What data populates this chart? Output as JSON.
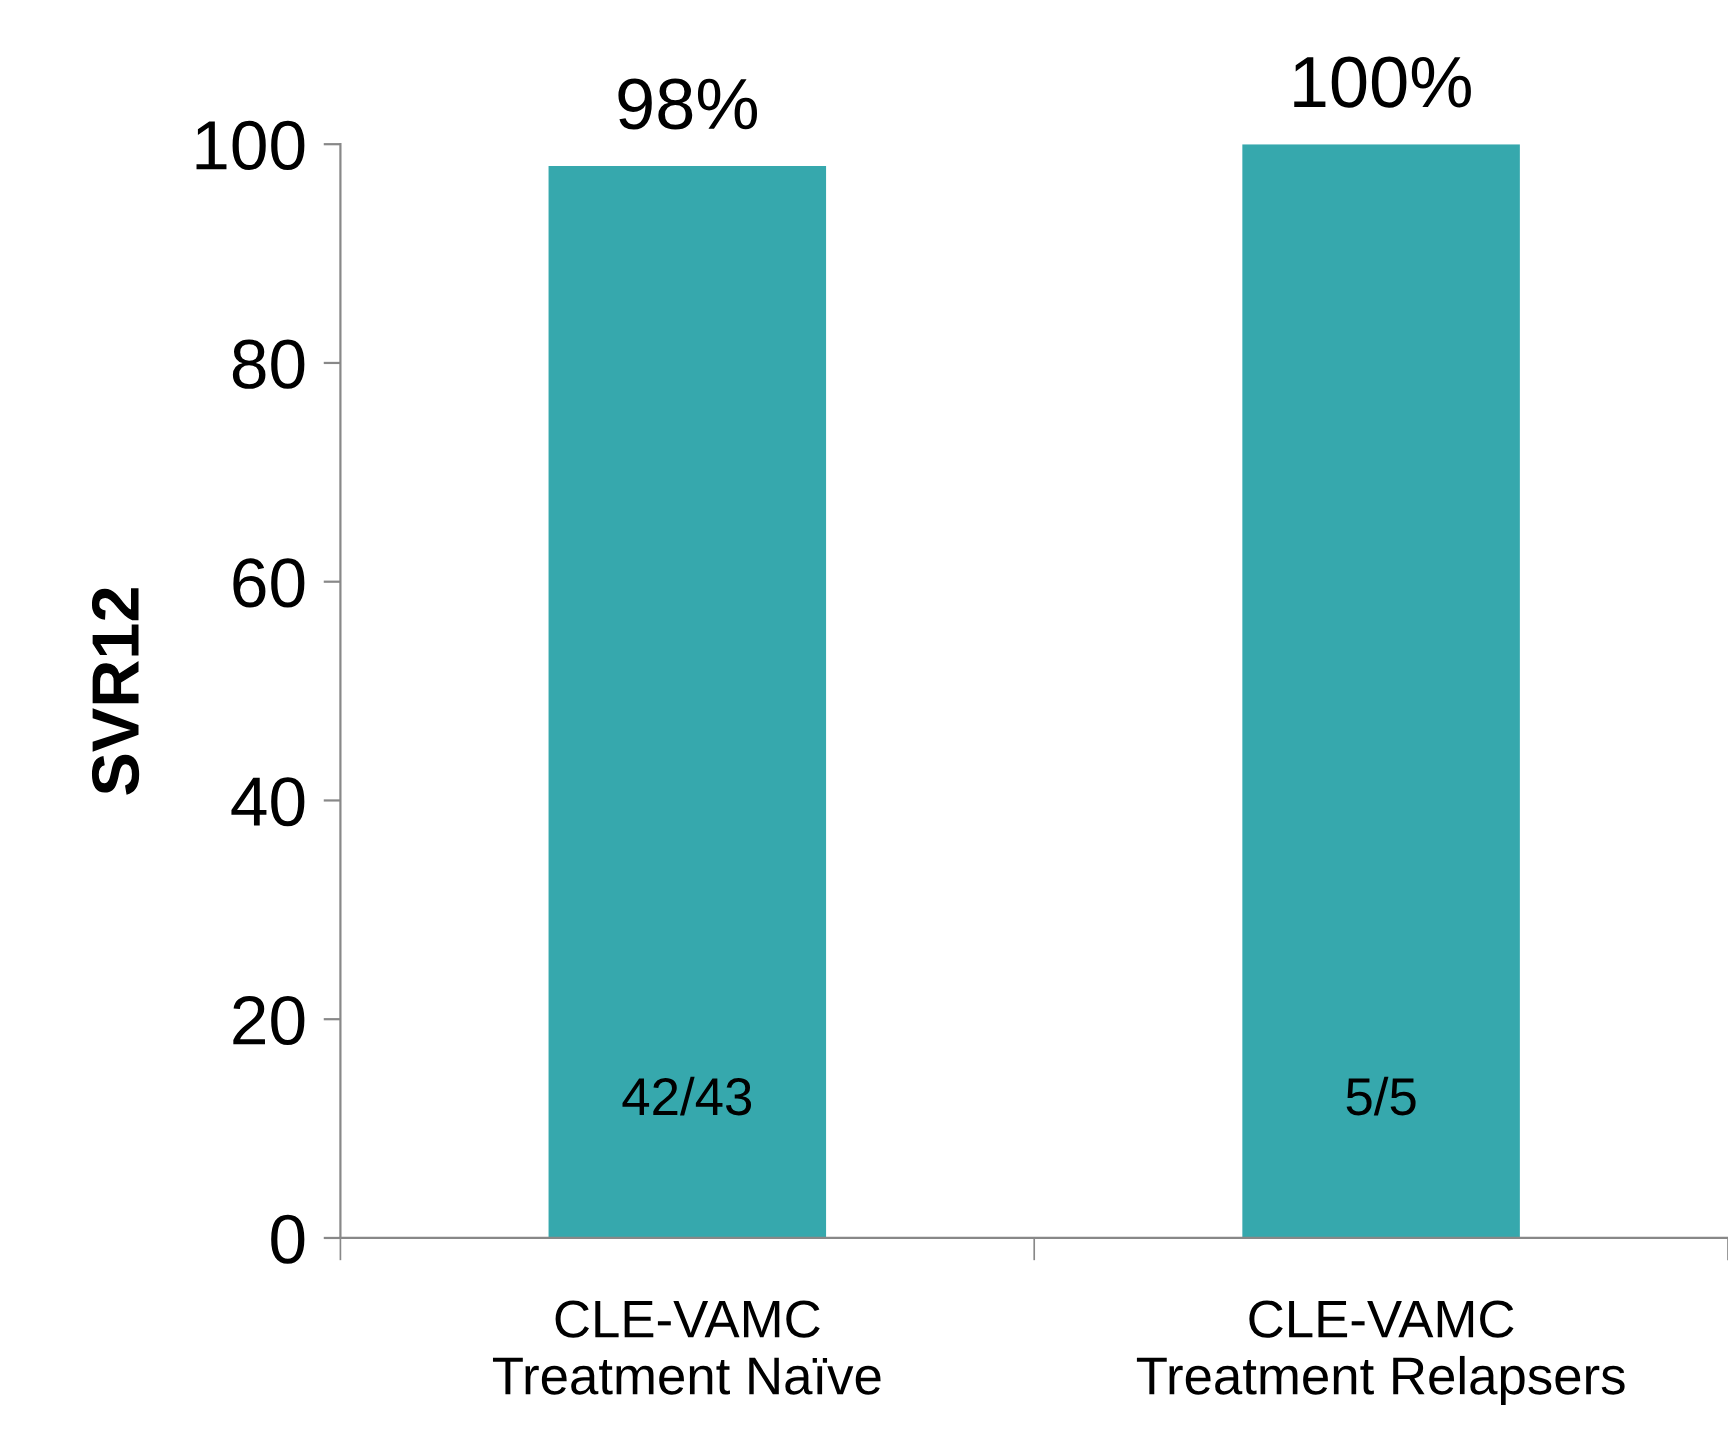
{
  "chart_data": {
    "type": "bar",
    "ylabel": "SVR12",
    "categories": [
      "CLE-VAMC\nTreatment Naïve",
      "CLE-VAMC\nTreatment Relapsers"
    ],
    "values": [
      98,
      100
    ],
    "color": "#36a8ad",
    "value_labels": [
      "98%",
      "100%"
    ],
    "annotations": [
      "42/43",
      "5/5"
    ],
    "ylim": [
      0,
      100
    ],
    "yticks": [
      0,
      20,
      40,
      60,
      80,
      100
    ],
    "grid": false,
    "legend": false
  }
}
